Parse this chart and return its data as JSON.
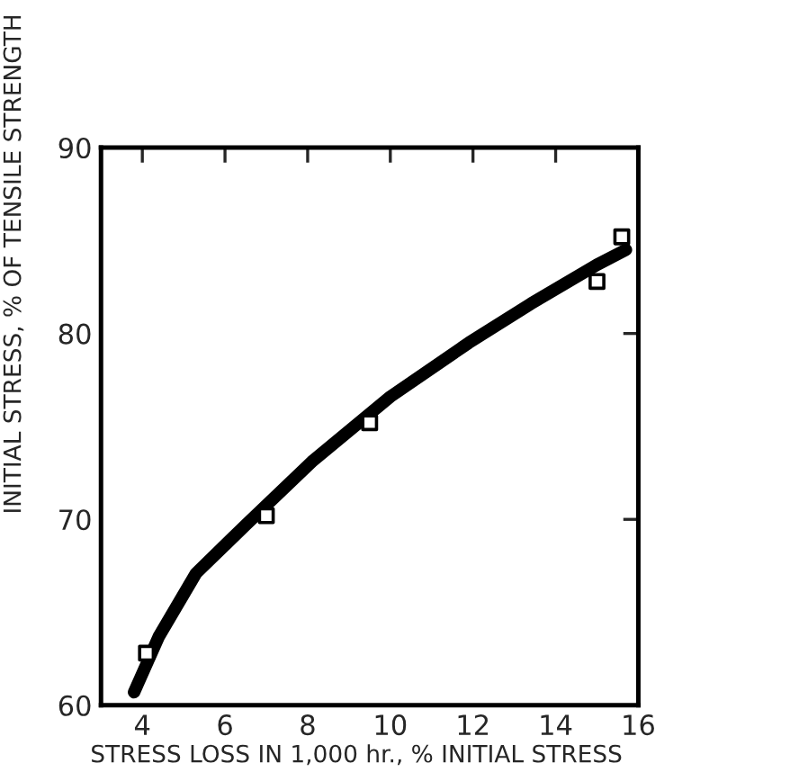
{
  "chart_data": {
    "type": "line",
    "xlabel": "STRESS LOSS IN 1,000 hr., % INITIAL STRESS",
    "ylabel": "INITIAL STRESS, % OF TENSILE STRENGTH",
    "xlim": [
      3,
      16
    ],
    "xticks": [
      4,
      6,
      8,
      10,
      12,
      14,
      16
    ],
    "ylim": [
      60,
      90
    ],
    "yticks": [
      60,
      70,
      80,
      90
    ],
    "grid": false,
    "legend": false,
    "series": [
      {
        "color": "#000000",
        "marker": "none",
        "line_style": "solid",
        "x": [
          3.8,
          4.4,
          5.3,
          6.5,
          8.1,
          10.0,
          11.9,
          13.4,
          15.0,
          15.7
        ],
        "values": [
          60.7,
          63.7,
          67.1,
          69.7,
          73.1,
          76.6,
          79.5,
          81.6,
          83.7,
          84.5
        ]
      },
      {
        "type": "scatter",
        "color": "#000000",
        "marker": "square",
        "x": [
          4.1,
          7.0,
          9.5,
          15.0,
          15.6
        ],
        "values": [
          62.8,
          70.2,
          75.2,
          82.8,
          85.2
        ]
      }
    ]
  }
}
